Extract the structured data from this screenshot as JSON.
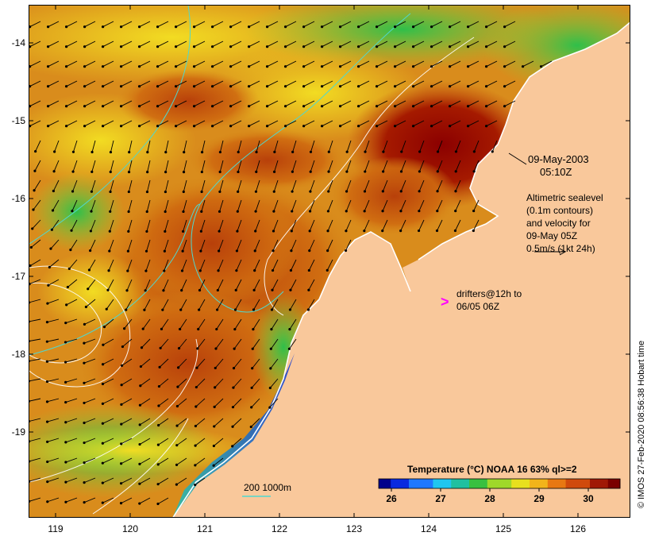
{
  "map": {
    "annotation_date": "09-May-2003",
    "annotation_time": "05:10Z",
    "sealevel_lines": [
      "Altimetric sealevel",
      "(0.1m contours)",
      "and velocity for",
      "09-May 05Z",
      "0.5m/s (1kt 24h)"
    ],
    "drifters_marker": ">",
    "drifters_lines": [
      "drifters@12h to",
      "06/05 06Z"
    ],
    "depth_scale_label": "200  1000m",
    "credit": "© IMOS 27-Feb-2020 08:56:38 Hobart time",
    "x_axis_ticks": [
      "119",
      "120",
      "121",
      "122",
      "123",
      "124",
      "125",
      "126"
    ],
    "y_axis_ticks": [
      "-14",
      "-15",
      "-16",
      "-17",
      "-18",
      "-19"
    ],
    "colorbar": {
      "title": "Temperature (°C) NOAA 16 63% ql>=2",
      "ticks": [
        "26",
        "27",
        "28",
        "29",
        "30"
      ]
    },
    "colors": {
      "land": "#f9c89b",
      "drifter_marker": "#ff00ff",
      "isobath": "#4fd8cf",
      "sealevel_contour": "#ffffff"
    }
  }
}
